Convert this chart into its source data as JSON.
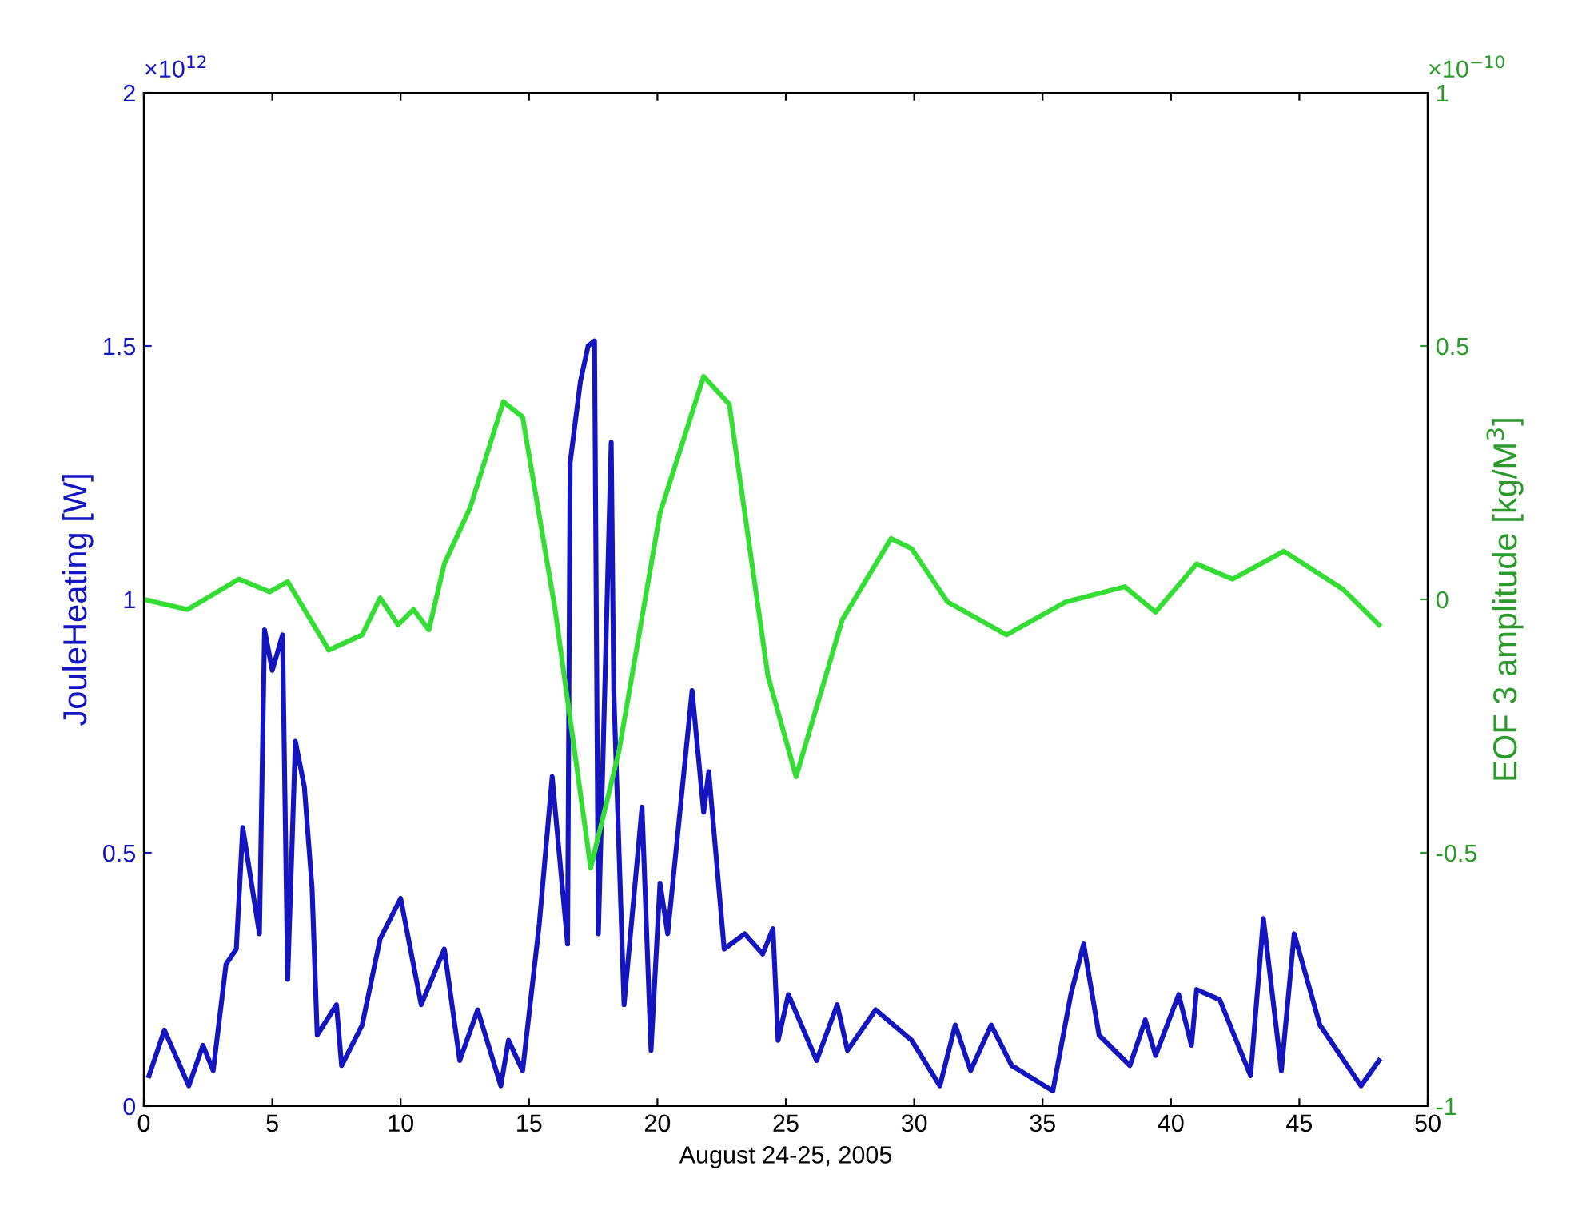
{
  "chart_data": {
    "type": "line",
    "xlabel": "August 24-25, 2005",
    "ylabel": "JouleHeating [W]",
    "y2label": "EOF 3 amplitude [kg/M$^{3}$]",
    "annotations": [
      "×10$^{12}$",
      "×10$^{−10}$"
    ],
    "xlim": [
      0,
      50
    ],
    "xticks": [
      0,
      5,
      10,
      15,
      20,
      25,
      30,
      35,
      40,
      45,
      50
    ],
    "ylim": [
      0,
      2
    ],
    "yticks": [
      0,
      0.5,
      1,
      1.5,
      2
    ],
    "y2lim": [
      -1,
      1
    ],
    "y2ticks": [
      -1,
      -0.5,
      0,
      0.5,
      1
    ],
    "grid": false,
    "legend": false,
    "marker": "none",
    "line_style": "solid",
    "series": [
      {
        "color": "#1414c0",
        "axis": "y",
        "x": [
          0.2,
          0.8,
          1.75,
          2.3,
          2.7,
          3.2,
          3.6,
          3.85,
          4.5,
          4.7,
          5.0,
          5.4,
          5.6,
          5.9,
          6.25,
          6.55,
          6.75,
          7.5,
          7.7,
          8.5,
          9.2,
          10.0,
          10.8,
          11.7,
          12.3,
          13.0,
          13.9,
          14.2,
          14.75,
          15.4,
          15.9,
          16.5,
          16.6,
          17.0,
          17.3,
          17.55,
          17.7,
          18.2,
          18.3,
          18.7,
          19.4,
          19.75,
          20.1,
          20.4,
          21.35,
          21.8,
          22.0,
          22.6,
          23.4,
          24.1,
          24.5,
          24.7,
          25.1,
          26.2,
          27.0,
          27.4,
          28.5,
          29.9,
          31.0,
          31.6,
          32.2,
          33.0,
          33.8,
          35.4,
          36.1,
          36.6,
          37.2,
          38.4,
          39.0,
          39.4,
          40.3,
          40.8,
          41.0,
          41.9,
          43.1,
          43.6,
          44.3,
          44.8,
          45.3,
          45.8,
          47.4,
          48.1
        ],
        "values": [
          0.06,
          0.15,
          0.04,
          0.12,
          0.07,
          0.28,
          0.31,
          0.55,
          0.34,
          0.94,
          0.86,
          0.93,
          0.25,
          0.72,
          0.63,
          0.43,
          0.14,
          0.2,
          0.08,
          0.16,
          0.33,
          0.41,
          0.2,
          0.31,
          0.09,
          0.19,
          0.04,
          0.13,
          0.07,
          0.36,
          0.65,
          0.32,
          1.27,
          1.43,
          1.5,
          1.51,
          0.34,
          1.31,
          0.82,
          0.2,
          0.59,
          0.11,
          0.44,
          0.34,
          0.82,
          0.58,
          0.66,
          0.31,
          0.34,
          0.3,
          0.35,
          0.13,
          0.22,
          0.09,
          0.2,
          0.11,
          0.19,
          0.13,
          0.04,
          0.16,
          0.07,
          0.16,
          0.08,
          0.03,
          0.22,
          0.32,
          0.14,
          0.08,
          0.17,
          0.1,
          0.22,
          0.12,
          0.23,
          0.21,
          0.06,
          0.37,
          0.07,
          0.34,
          0.25,
          0.16,
          0.04,
          0.09
        ]
      },
      {
        "color": "#33dd33",
        "axis": "y2",
        "x": [
          0,
          1.7,
          3.7,
          4.9,
          5.6,
          7.2,
          8.5,
          9.2,
          9.9,
          10.5,
          11.1,
          11.7,
          12.7,
          14.0,
          14.75,
          16.0,
          17.4,
          18.5,
          20.1,
          21.8,
          22.8,
          24.3,
          25.4,
          27.2,
          29.1,
          29.9,
          31.3,
          33.6,
          35.9,
          38.2,
          39.4,
          41.0,
          42.4,
          44.4,
          46.7,
          48.1
        ],
        "values": [
          0,
          -0.02,
          0.04,
          0.015,
          0.035,
          -0.1,
          -0.07,
          0.003,
          -0.05,
          -0.02,
          -0.06,
          0.07,
          0.18,
          0.39,
          0.36,
          -0.015,
          -0.53,
          -0.3,
          0.17,
          0.44,
          0.385,
          -0.15,
          -0.35,
          -0.04,
          0.12,
          0.1,
          -0.005,
          -0.07,
          -0.005,
          0.025,
          -0.025,
          0.07,
          0.04,
          0.095,
          0.02,
          -0.05
        ]
      }
    ]
  }
}
